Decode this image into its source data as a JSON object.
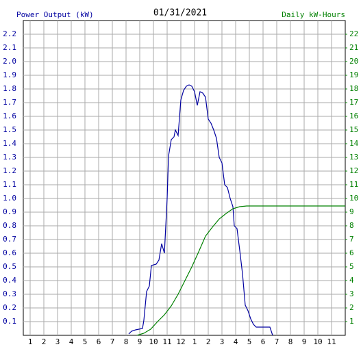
{
  "chart_data": {
    "type": "line",
    "title": "01/31/2021",
    "y_label": "Power Output (kW)",
    "y2_label": "Daily kW-Hours",
    "xlim": [
      0.5,
      24
    ],
    "xticks": [
      1,
      2,
      3,
      4,
      5,
      6,
      7,
      8,
      9,
      10,
      11,
      12,
      {
        "value": 13,
        "label": "1"
      },
      {
        "value": 14,
        "label": "2"
      },
      {
        "value": 15,
        "label": "3"
      },
      {
        "value": 16,
        "label": "4"
      },
      {
        "value": 17,
        "label": "5"
      },
      {
        "value": 18,
        "label": "6"
      },
      {
        "value": 19,
        "label": "7"
      },
      {
        "value": 20,
        "label": "8"
      },
      {
        "value": 21,
        "label": "9"
      },
      {
        "value": 22,
        "label": "10"
      },
      {
        "value": 23,
        "label": "11"
      }
    ],
    "ylim": [
      0,
      2.3
    ],
    "yticks": [
      0.1,
      0.2,
      0.3,
      0.4,
      0.5,
      0.6,
      0.7,
      0.8,
      0.9,
      {
        "value": 1,
        "label": "1.0"
      },
      1.1,
      1.2,
      1.3,
      1.4,
      1.5,
      1.6,
      1.7,
      1.8,
      1.9,
      {
        "value": 2,
        "label": "2.0"
      },
      2.1,
      2.2
    ],
    "y2lim": [
      0,
      23
    ],
    "y2ticks": [
      1,
      2,
      3,
      4,
      5,
      6,
      7,
      8,
      9,
      10,
      11,
      12,
      13,
      14,
      15,
      16,
      17,
      18,
      19,
      20,
      21,
      22
    ],
    "grid": true,
    "series": [
      {
        "color": "#0000a0",
        "x": [
          8.2,
          8.4,
          8.7,
          9.2,
          9.3,
          9.5,
          9.7,
          9.85,
          10.2,
          10.4,
          10.6,
          10.8,
          11.0,
          11.1,
          11.3,
          11.5,
          11.6,
          11.8,
          12.0,
          12.2,
          12.4,
          12.6,
          12.8,
          13.0,
          13.2,
          13.4,
          13.6,
          13.8,
          14.0,
          14.2,
          14.4,
          14.6,
          14.8,
          15.0,
          15.2,
          15.4,
          15.6,
          15.8,
          15.9,
          16.1,
          16.3,
          16.5,
          16.7,
          16.9,
          17.1,
          17.3,
          17.5,
          18.5,
          18.7
        ],
        "values": [
          0.01,
          0.03,
          0.04,
          0.05,
          0.11,
          0.32,
          0.36,
          0.51,
          0.52,
          0.55,
          0.67,
          0.6,
          1.0,
          1.31,
          1.43,
          1.45,
          1.5,
          1.46,
          1.72,
          1.79,
          1.82,
          1.83,
          1.82,
          1.78,
          1.68,
          1.78,
          1.77,
          1.74,
          1.58,
          1.55,
          1.5,
          1.44,
          1.3,
          1.26,
          1.1,
          1.08,
          1.0,
          0.94,
          0.8,
          0.78,
          0.62,
          0.45,
          0.22,
          0.18,
          0.12,
          0.08,
          0.06,
          0.06,
          0
        ]
      },
      {
        "color": "#008000",
        "axis": "y2",
        "x": [
          8.8,
          9.3,
          9.8,
          10.3,
          10.8,
          11.3,
          11.8,
          12.3,
          12.8,
          13.3,
          13.8,
          14.3,
          14.8,
          15.3,
          15.8,
          16.3,
          16.8,
          17.3,
          24
        ],
        "values": [
          0,
          0.15,
          0.45,
          1.0,
          1.5,
          2.15,
          3.0,
          4.0,
          5.0,
          6.1,
          7.25,
          7.9,
          8.5,
          8.9,
          9.25,
          9.4,
          9.45,
          9.45,
          9.45
        ]
      }
    ]
  }
}
